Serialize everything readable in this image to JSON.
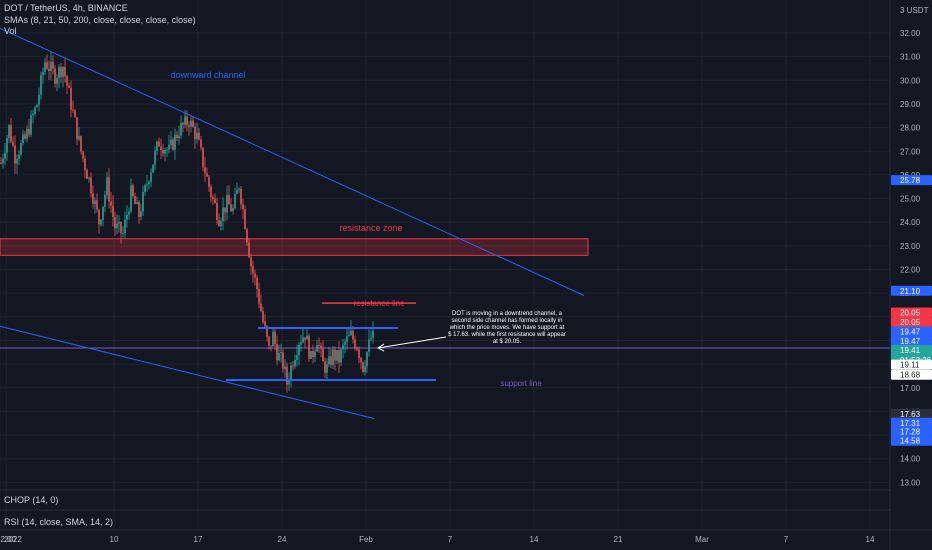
{
  "header": {
    "symbol_line": "DOT / TetherUS, 4h, BINANCE",
    "sma_line": "SMAs (8, 21, 50, 200, close, close, close, close)",
    "vol_label": "Vol"
  },
  "panes": {
    "chop_label": "CHOP (14, 0)",
    "rsi_label": "RSI (14, close, SMA, 14, 2)"
  },
  "currency_label": "3 USDT",
  "chart_data": {
    "type": "candlestick",
    "symbol": "DOT / TetherUS",
    "interval": "4h",
    "exchange": "BINANCE",
    "y_axis": {
      "range": [
        12.5,
        33.0
      ],
      "ticks": [
        13.0,
        14.0,
        15.0,
        16.0,
        17.0,
        18.0,
        19.0,
        20.0,
        21.0,
        22.0,
        23.0,
        24.0,
        25.0,
        26.0,
        27.0,
        28.0,
        29.0,
        30.0,
        31.0,
        32.0
      ],
      "tick_labels": [
        "13.00",
        "14.00",
        "15.00",
        "16.00",
        "17.00",
        "18.00",
        "19.00",
        "20.00",
        "21.00",
        "22.00",
        "23.00",
        "24.00",
        "25.00",
        "26.00",
        "27.00",
        "28.00",
        "29.00",
        "30.00",
        "31.00",
        "32.00"
      ]
    },
    "x_axis": {
      "labels": [
        {
          "label": "2022",
          "x": 0
        },
        {
          "label": "12:00",
          "x": 3
        },
        {
          "label": "10",
          "x": 57
        },
        {
          "label": "17",
          "x": 99
        },
        {
          "label": "24",
          "x": 141
        },
        {
          "label": "Feb",
          "x": 183
        },
        {
          "label": "7",
          "x": 225
        },
        {
          "label": "14",
          "x": 267
        },
        {
          "label": "21",
          "x": 309
        },
        {
          "label": "Mar",
          "x": 351
        },
        {
          "label": "7",
          "x": 393
        },
        {
          "label": "14",
          "x": 435
        }
      ]
    },
    "price_path": [
      [
        0,
        26.5
      ],
      [
        4,
        28.0
      ],
      [
        7,
        26.8
      ],
      [
        12,
        27.5
      ],
      [
        18,
        29.0
      ],
      [
        22,
        30.8
      ],
      [
        27,
        30.2
      ],
      [
        31,
        30.6
      ],
      [
        35,
        29.0
      ],
      [
        40,
        27.0
      ],
      [
        45,
        25.5
      ],
      [
        49,
        24.0
      ],
      [
        53,
        25.6
      ],
      [
        57,
        23.8
      ],
      [
        61,
        23.5
      ],
      [
        65,
        25.2
      ],
      [
        69,
        24.3
      ],
      [
        74,
        26.0
      ],
      [
        79,
        27.4
      ],
      [
        84,
        27.0
      ],
      [
        89,
        27.9
      ],
      [
        94,
        28.3
      ],
      [
        98,
        27.6
      ],
      [
        101,
        26.5
      ],
      [
        105,
        25.2
      ],
      [
        109,
        24.2
      ],
      [
        113,
        24.8
      ],
      [
        116,
        24.5
      ],
      [
        119,
        25.6
      ],
      [
        122,
        24.0
      ],
      [
        125,
        22.2
      ],
      [
        128,
        21.2
      ],
      [
        131,
        19.8
      ],
      [
        134,
        18.6
      ],
      [
        136,
        19.2
      ],
      [
        138,
        18.5
      ],
      [
        141,
        18.0
      ],
      [
        143,
        17.2
      ],
      [
        146,
        18.2
      ],
      [
        149,
        19.0
      ],
      [
        152,
        19.3
      ],
      [
        155,
        18.2
      ],
      [
        158,
        19.1
      ],
      [
        161,
        18.0
      ],
      [
        163,
        17.8
      ],
      [
        166,
        18.4
      ],
      [
        169,
        18.2
      ],
      [
        172,
        18.9
      ],
      [
        175,
        19.2
      ],
      [
        178,
        18.8
      ],
      [
        181,
        17.9
      ],
      [
        184,
        18.8
      ],
      [
        186,
        19.41
      ]
    ],
    "volatility": 0.45,
    "last_price": 19.41,
    "annotations": {
      "downward_channel": {
        "label": "downward channel",
        "color": "#2962ff",
        "upper": [
          [
            0,
            32.2
          ],
          [
            292,
            20.9
          ]
        ],
        "lower": [
          [
            0,
            19.6
          ],
          [
            187,
            15.7
          ]
        ]
      },
      "resistance_zone": {
        "label": "resistance zone",
        "color": "#f23645",
        "low": 22.6,
        "high": 23.3
      },
      "resistance_line": {
        "label": "resistance line",
        "color": "#f23645",
        "level": 20.2
      },
      "channel_top": {
        "color": "#2962ff",
        "level": 19.55
      },
      "support_line": {
        "label": "support line",
        "color": "#7e57c2",
        "level": 17.35
      },
      "horizontal_ref": {
        "color": "#7e57c2",
        "level": 18.68
      },
      "note": "DOT is moving in a downtrend channel, a second side channel has formed locally in which the price moves. We have support at $ 17.63. while the first resistance will appear at $ 20.05."
    },
    "price_badges": [
      {
        "label": "25.78",
        "value": 25.78,
        "color": "#2962ff"
      },
      {
        "label": "21.10",
        "value": 21.1,
        "color": "#2962ff"
      },
      {
        "label": "20.05",
        "value": 20.18,
        "color": "#f23645"
      },
      {
        "label": "20.05",
        "value": 19.78,
        "color": "#f23645"
      },
      {
        "label": "19.47",
        "value": 19.38,
        "color": "#2962ff"
      },
      {
        "label": "19.47",
        "value": 18.98,
        "color": "#2962ff"
      },
      {
        "label": "19.41",
        "value": 18.6,
        "color": "#26a69a",
        "sub": "01:52:26"
      },
      {
        "label": "19.11",
        "value": 17.98,
        "color": "#ffffff",
        "dark_text": true
      },
      {
        "label": "18.68",
        "value": 17.55,
        "color": "#ffffff",
        "dark_text": true
      },
      {
        "label": "17.63",
        "value": 15.9,
        "color": "#2a2e39"
      },
      {
        "label": "17.31",
        "value": 15.52,
        "color": "#2962ff"
      },
      {
        "label": "17.28",
        "value": 15.14,
        "color": "#2962ff"
      },
      {
        "label": "14.58",
        "value": 14.76,
        "color": "#2962ff"
      }
    ]
  },
  "colors": {
    "background": "#131722",
    "grid": "#1e222d",
    "up": "#26a69a",
    "down": "#ef5350"
  }
}
